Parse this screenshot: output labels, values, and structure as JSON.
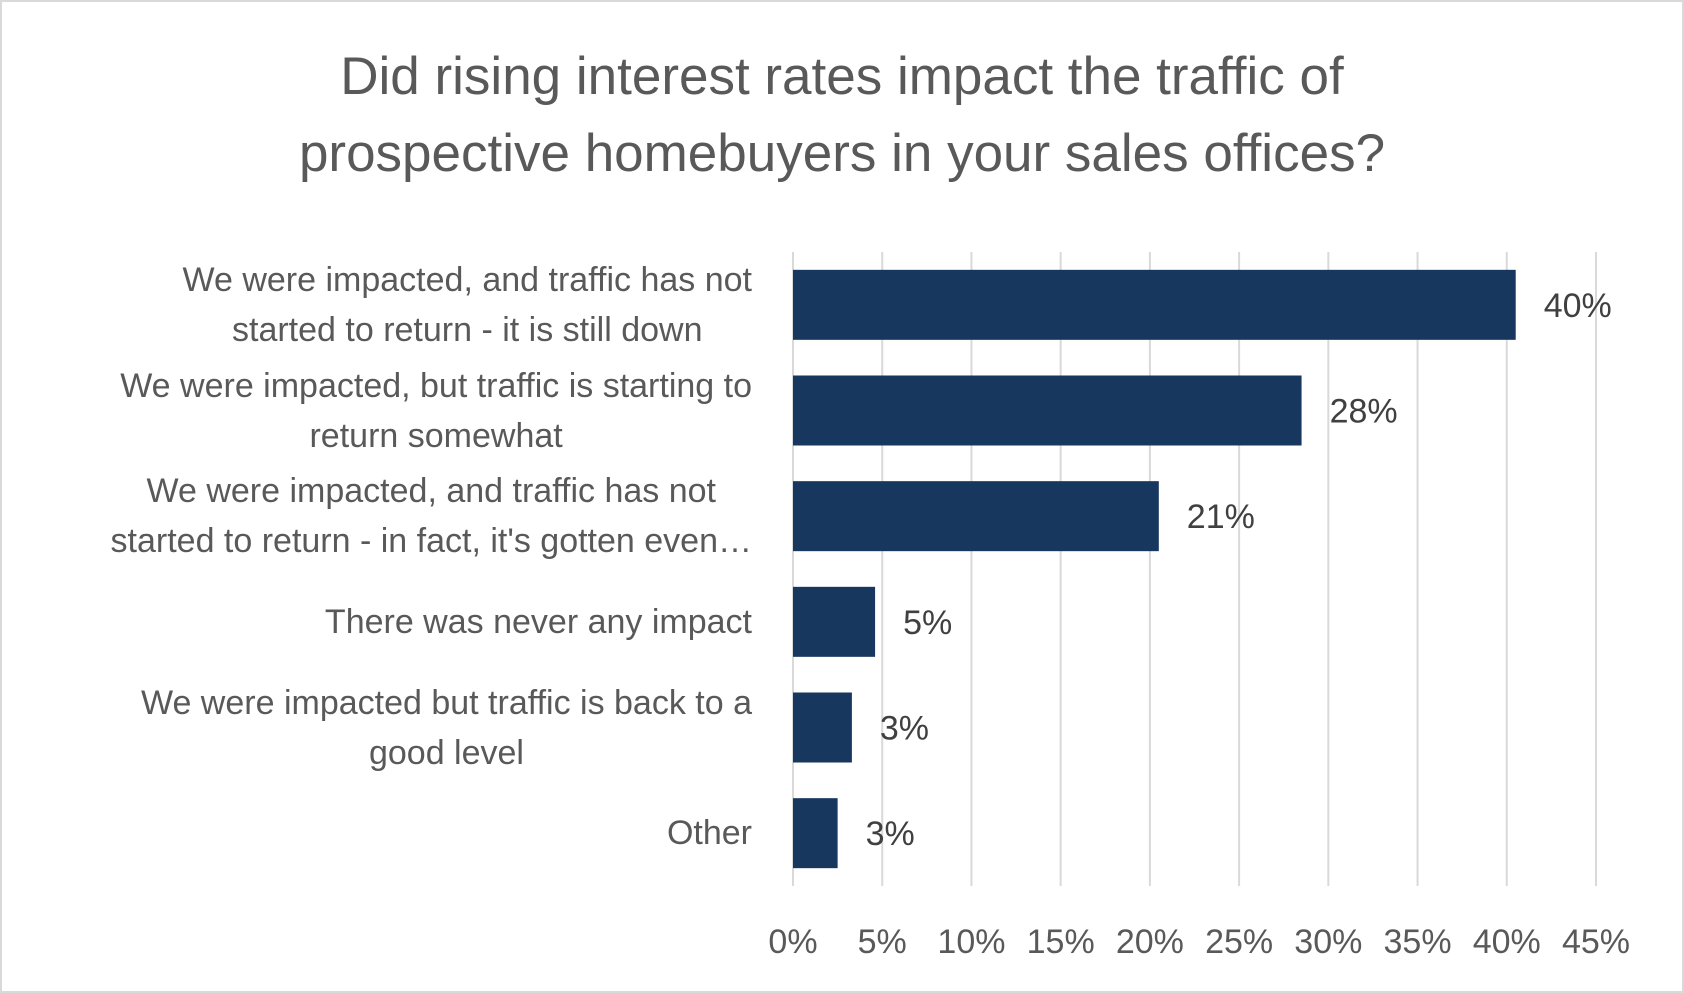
{
  "chart_data": {
    "type": "bar",
    "orientation": "horizontal",
    "title": "Did rising interest rates impact the traffic of prospective homebuyers in your sales offices?",
    "title_lines": [
      "Did rising interest rates impact the traffic of",
      "prospective homebuyers in your sales offices?"
    ],
    "categories": [
      {
        "label": "We were impacted, and traffic has not started to return - it is still down",
        "lines": [
          "We were impacted, and traffic has not",
          "started to return - it is still down"
        ]
      },
      {
        "label": "We were impacted, but traffic is starting to return somewhat",
        "lines": [
          "We were impacted, but traffic is starting to",
          "return somewhat"
        ]
      },
      {
        "label": "We were impacted, and traffic has not started to return - in fact, it's gotten even...",
        "lines": [
          "We were impacted, and traffic has not",
          "started to return - in fact, it's gotten even…"
        ]
      },
      {
        "label": "There was never any impact",
        "lines": [
          "There was never any impact"
        ]
      },
      {
        "label": "We were impacted but traffic is back to a good level",
        "lines": [
          "We were impacted but traffic is back to a",
          "good level"
        ]
      },
      {
        "label": "Other",
        "lines": [
          "Other"
        ]
      }
    ],
    "values": [
      40.5,
      28.5,
      20.5,
      4.6,
      3.3,
      2.5
    ],
    "data_labels": [
      "40%",
      "28%",
      "21%",
      "5%",
      "3%",
      "3%"
    ],
    "xlim": [
      0,
      45
    ],
    "xticks": [
      "0%",
      "5%",
      "10%",
      "15%",
      "20%",
      "25%",
      "30%",
      "35%",
      "40%",
      "45%"
    ],
    "xlabel": "",
    "ylabel": "",
    "grid": "vertical",
    "legend": "none",
    "bar_color": "#17375e",
    "grid_color": "#d9d9d9"
  }
}
